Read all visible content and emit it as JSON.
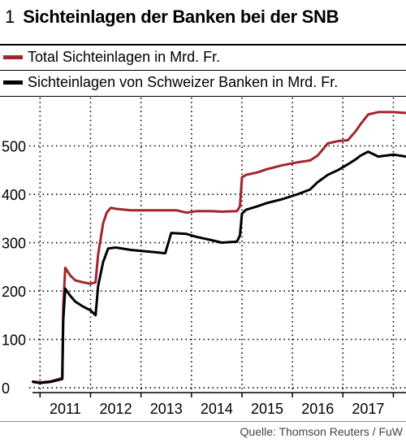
{
  "header": {
    "number": "1",
    "title": "Sichteinlagen der Banken bei der SNB"
  },
  "colors": {
    "total": "#a1252b",
    "schweizer": "#000000"
  },
  "source": "Quelle: Thomson Reuters / FuW",
  "chart_data": {
    "type": "line",
    "title": "Sichteinlagen der Banken bei der SNB",
    "ylim": [
      -10,
      600
    ],
    "xlim": [
      2010.35,
      2017.75
    ],
    "yticks": [
      0,
      100,
      200,
      300,
      400,
      500
    ],
    "ytick_labels": [
      "0",
      "100",
      "200",
      "300",
      "400",
      "500"
    ],
    "xticks": [
      2011,
      2012,
      2013,
      2014,
      2015,
      2016,
      2017
    ],
    "xtick_labels": [
      "2011",
      "2012",
      "2013",
      "2014",
      "2015",
      "2016",
      "2017"
    ],
    "grid": true,
    "series": [
      {
        "name": "Total Sichteinlagen in Mrd. Fr.",
        "x": [
          2010.36,
          2010.5,
          2010.7,
          2010.94,
          2010.96,
          2011.0,
          2011.1,
          2011.2,
          2011.35,
          2011.5,
          2011.6,
          2011.65,
          2011.75,
          2011.82,
          2011.9,
          2012.0,
          2012.3,
          2012.6,
          2012.9,
          2013.2,
          2013.4,
          2013.6,
          2013.9,
          2014.1,
          2014.4,
          2014.46,
          2014.5,
          2014.58,
          2014.8,
          2015.0,
          2015.3,
          2015.6,
          2015.85,
          2016.0,
          2016.2,
          2016.4,
          2016.6,
          2016.75,
          2016.85,
          2017.0,
          2017.2,
          2017.5,
          2017.75
        ],
        "y": [
          13,
          11,
          13,
          20,
          170,
          248,
          232,
          222,
          218,
          215,
          218,
          275,
          340,
          362,
          372,
          370,
          367,
          367,
          367,
          367,
          362,
          365,
          365,
          364,
          365,
          375,
          435,
          440,
          445,
          452,
          460,
          466,
          470,
          480,
          505,
          510,
          512,
          530,
          545,
          565,
          570,
          570,
          568
        ]
      },
      {
        "name": "Sichteinlagen von Schweizer Banken in Mrd. Fr.",
        "x": [
          2010.36,
          2010.5,
          2010.7,
          2010.94,
          2010.96,
          2011.0,
          2011.1,
          2011.2,
          2011.35,
          2011.5,
          2011.6,
          2011.65,
          2011.75,
          2011.85,
          2012.0,
          2012.3,
          2012.6,
          2012.8,
          2012.98,
          2013.1,
          2013.4,
          2013.6,
          2013.9,
          2014.1,
          2014.4,
          2014.46,
          2014.5,
          2014.58,
          2014.8,
          2015.0,
          2015.3,
          2015.6,
          2015.85,
          2016.0,
          2016.2,
          2016.4,
          2016.6,
          2016.75,
          2016.85,
          2017.0,
          2017.2,
          2017.5,
          2017.75
        ],
        "y": [
          12,
          10,
          12,
          18,
          140,
          205,
          190,
          178,
          168,
          160,
          150,
          210,
          260,
          288,
          290,
          285,
          282,
          280,
          278,
          320,
          318,
          312,
          305,
          300,
          302,
          315,
          360,
          368,
          375,
          382,
          390,
          400,
          410,
          425,
          440,
          450,
          462,
          472,
          480,
          488,
          478,
          482,
          478
        ]
      }
    ]
  }
}
